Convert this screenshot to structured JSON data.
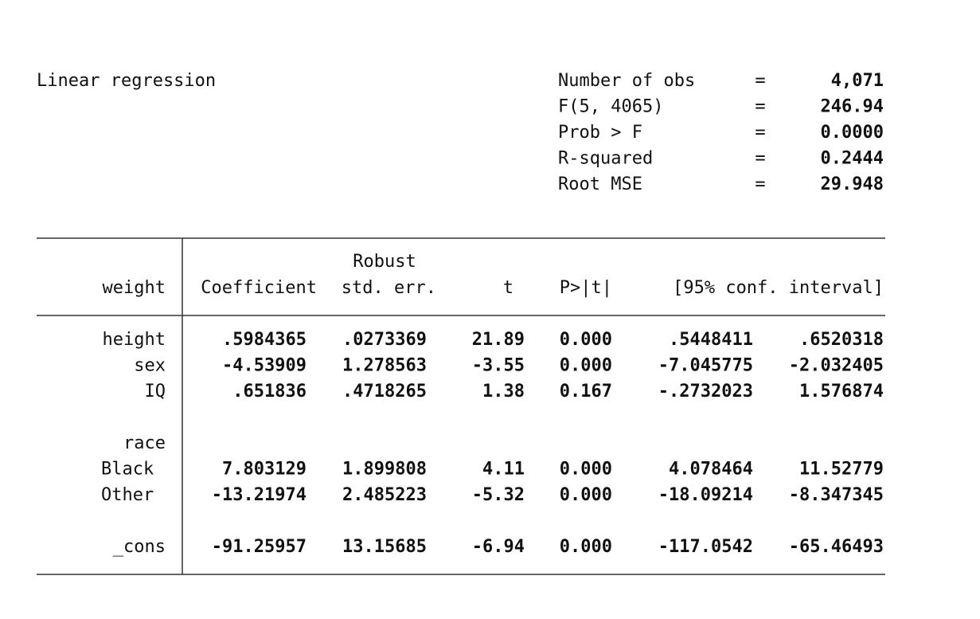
{
  "header": {
    "title": "Linear regression",
    "stats": [
      {
        "label": "Number of obs",
        "sign": "=",
        "value": "4,071"
      },
      {
        "label": "F(5, 4065)",
        "sign": "=",
        "value": "246.94"
      },
      {
        "label": "Prob > F",
        "sign": "=",
        "value": "0.0000"
      },
      {
        "label": "R-squared",
        "sign": "=",
        "value": "0.2444"
      },
      {
        "label": "Root MSE",
        "sign": "=",
        "value": "29.948"
      }
    ]
  },
  "table": {
    "depvar": "weight",
    "se_note": "Robust",
    "columns": [
      "Coefficient",
      "std. err.",
      "t",
      "P>|t|",
      "[95% conf. interval]"
    ],
    "rows": [
      {
        "label": "height",
        "values": [
          ".5984365",
          ".0273369",
          "21.89",
          "0.000",
          ".5448411",
          ".6520318"
        ]
      },
      {
        "label": "sex",
        "values": [
          "-4.53909",
          "1.278563",
          "-3.55",
          "0.000",
          "-7.045775",
          "-2.032405"
        ]
      },
      {
        "label": "IQ",
        "values": [
          ".651836",
          ".4718265",
          "1.38",
          "0.167",
          "-.2732023",
          "1.576874"
        ]
      },
      {
        "label": "race",
        "levels": [
          {
            "label": "Black",
            "values": [
              "7.803129",
              "1.899808",
              "4.11",
              "0.000",
              "4.078464",
              "11.52779"
            ]
          },
          {
            "label": "Other",
            "values": [
              "-13.21974",
              "2.485223",
              "-5.32",
              "0.000",
              "-18.09214",
              "-8.347345"
            ]
          }
        ]
      },
      {
        "label": "_cons",
        "values": [
          "-91.25957",
          "13.15685",
          "-6.94",
          "0.000",
          "-117.0542",
          "-65.46493"
        ]
      }
    ]
  }
}
